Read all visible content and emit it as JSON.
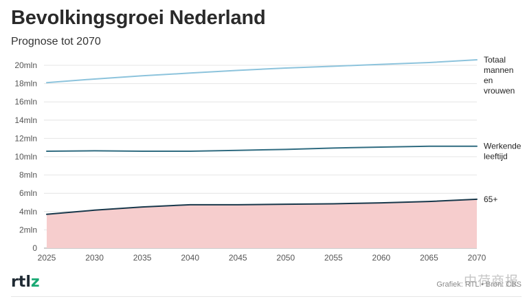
{
  "header": {
    "title": "Bevolkingsgroei Nederland",
    "subtitle": "Prognose tot 2070"
  },
  "footer": {
    "logo_main": "rtl",
    "logo_accent": "z",
    "credit": "Grafiek: RTL • Bron: CBS",
    "watermark": "中荷商报"
  },
  "chart_data": {
    "type": "line",
    "title": "Bevolkingsgroei Nederland",
    "subtitle": "Prognose tot 2070",
    "xlabel": "",
    "ylabel": "",
    "x": [
      2025,
      2030,
      2035,
      2040,
      2045,
      2050,
      2055,
      2060,
      2065,
      2070
    ],
    "xlim": [
      2025,
      2070
    ],
    "ylim": [
      0,
      20
    ],
    "y_ticks": [
      0,
      2,
      4,
      6,
      8,
      10,
      12,
      14,
      16,
      18,
      20
    ],
    "y_tick_labels": [
      "0",
      "2mln",
      "4mln",
      "6mln",
      "8mln",
      "10mln",
      "12mln",
      "14mln",
      "16mln",
      "18mln",
      "20mln"
    ],
    "x_tick_labels": [
      "2025",
      "2030",
      "2035",
      "2040",
      "2045",
      "2050",
      "2055",
      "2060",
      "2065",
      "2070"
    ],
    "grid": true,
    "legend": "direct labels at right end of lines",
    "series": [
      {
        "name": "Totaal mannen en vrouwen",
        "label_lines": [
          "Totaal",
          "mannen",
          "en",
          "vrouwen"
        ],
        "color": "#8cc3dc",
        "area": false,
        "values": [
          18.1,
          18.5,
          18.85,
          19.15,
          19.45,
          19.7,
          19.9,
          20.1,
          20.3,
          20.6
        ]
      },
      {
        "name": "Werkende leeftijd",
        "label_lines": [
          "Werkende",
          "leeftijd"
        ],
        "color": "#2f6b80",
        "area": false,
        "values": [
          10.6,
          10.65,
          10.6,
          10.6,
          10.7,
          10.8,
          10.95,
          11.05,
          11.15,
          11.15
        ]
      },
      {
        "name": "65+",
        "label_lines": [
          "65+"
        ],
        "color": "#17374a",
        "area": true,
        "area_color": "#f6cdcd",
        "values": [
          3.7,
          4.15,
          4.5,
          4.75,
          4.75,
          4.8,
          4.85,
          4.95,
          5.1,
          5.35
        ]
      }
    ]
  }
}
